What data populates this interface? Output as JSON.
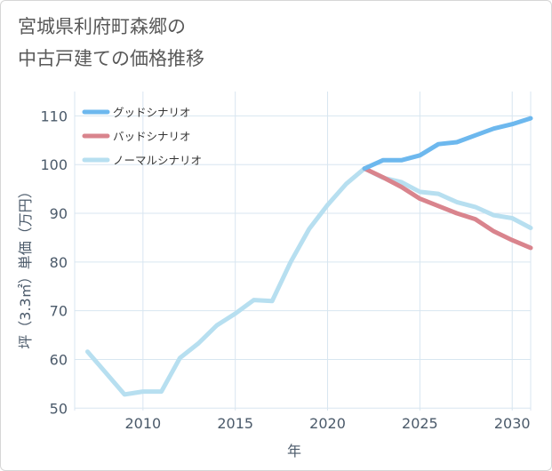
{
  "title_lines": [
    "宮城県利府町森郷の",
    "中古戸建ての価格推移"
  ],
  "chart_data": {
    "type": "line",
    "xlabel": "年",
    "ylabel": "坪（3.3㎡）単価（万円）",
    "xlim": [
      2006.3,
      2031
    ],
    "ylim": [
      49.5,
      115
    ],
    "x_ticks": [
      2010,
      2015,
      2020,
      2025,
      2030
    ],
    "y_ticks": [
      50,
      60,
      70,
      80,
      90,
      100,
      110
    ],
    "grid": true,
    "legend_position": "top-left",
    "series": [
      {
        "name": "グッドシナリオ",
        "color": "#6db8ee",
        "x": [
          2022,
          2023,
          2024,
          2025,
          2026,
          2027,
          2028,
          2029,
          2030,
          2031
        ],
        "y": [
          99.2,
          100.9,
          100.9,
          101.9,
          104.2,
          104.6,
          106.0,
          107.4,
          108.3,
          109.5
        ]
      },
      {
        "name": "バッドシナリオ",
        "color": "#d9848d",
        "x": [
          2022,
          2023,
          2024,
          2025,
          2026,
          2027,
          2028,
          2029,
          2030,
          2031
        ],
        "y": [
          99.2,
          97.4,
          95.4,
          93.0,
          91.5,
          90.0,
          88.8,
          86.3,
          84.5,
          82.9
        ]
      },
      {
        "name": "ノーマルシナリオ",
        "color": "#b7dff0",
        "x": [
          2007,
          2008,
          2009,
          2010,
          2011,
          2012,
          2013,
          2014,
          2015,
          2016,
          2017,
          2018,
          2019,
          2020,
          2021,
          2022,
          2023,
          2024,
          2025,
          2026,
          2027,
          2028,
          2029,
          2030,
          2031
        ],
        "y": [
          61.6,
          57.2,
          52.8,
          53.4,
          53.4,
          60.3,
          63.3,
          67.0,
          69.4,
          72.2,
          72.0,
          80.0,
          86.8,
          91.7,
          96.0,
          99.2,
          97.3,
          96.4,
          94.4,
          94.0,
          92.3,
          91.3,
          89.6,
          89.0,
          87.0
        ]
      }
    ]
  }
}
